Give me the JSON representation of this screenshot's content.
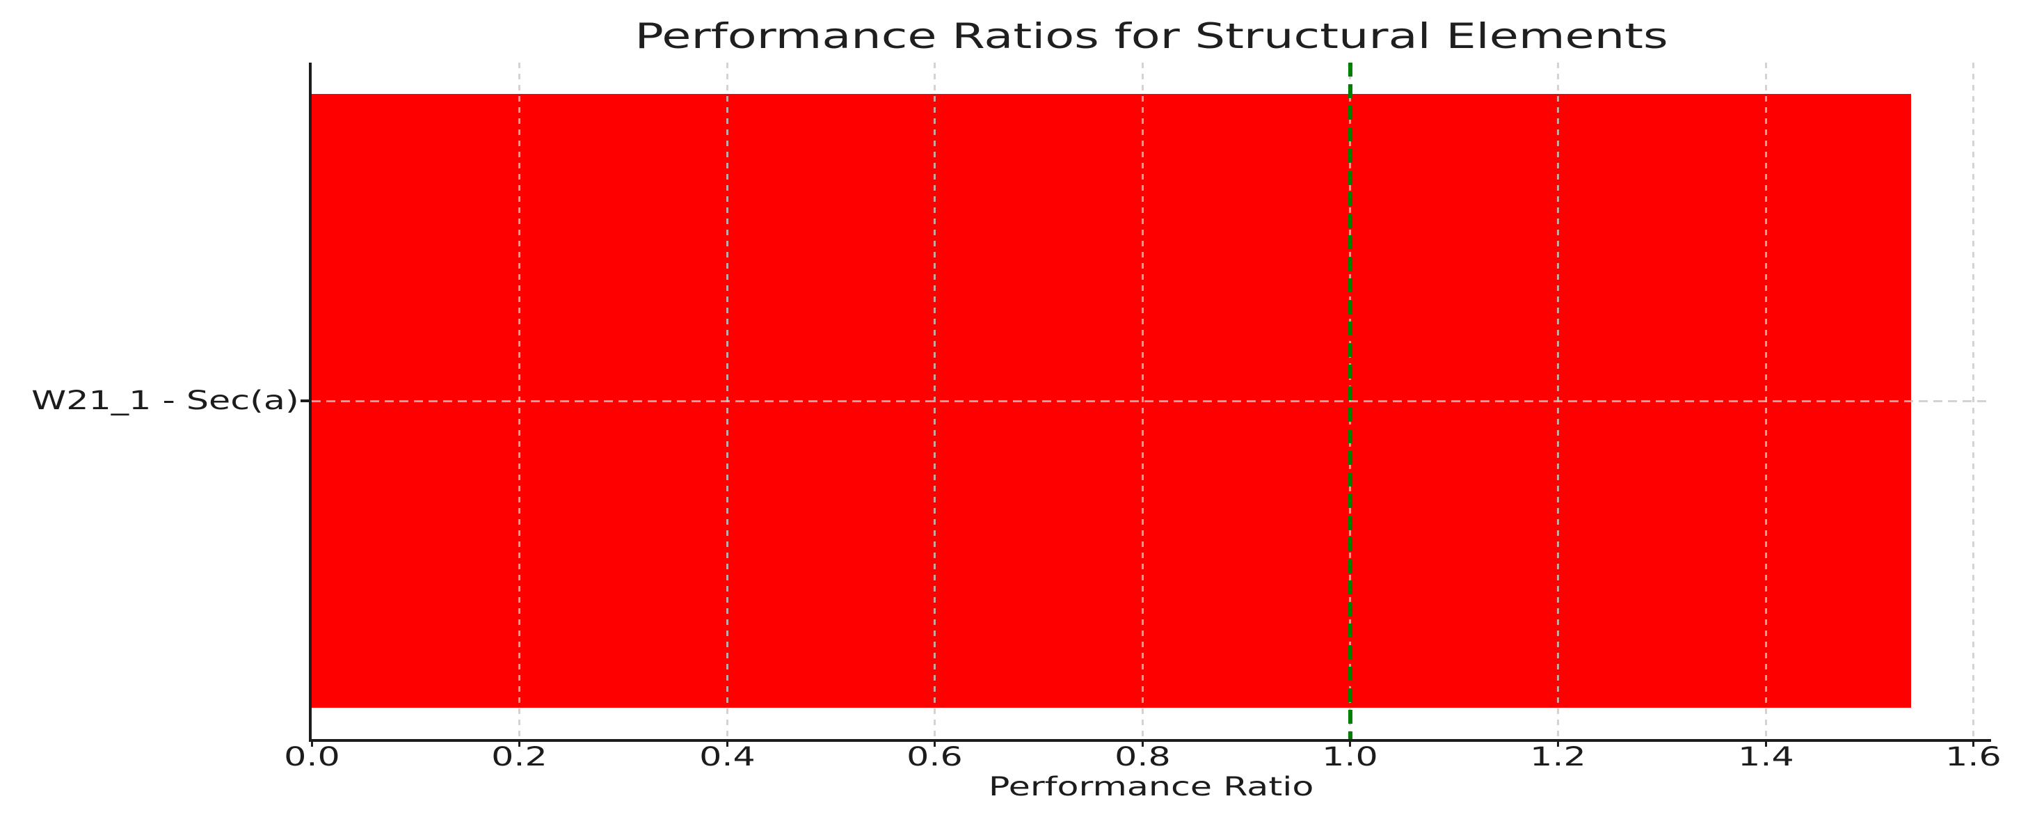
{
  "chart_data": {
    "type": "bar",
    "orientation": "horizontal",
    "title": "Performance Ratios for Structural Elements",
    "xlabel": "Performance Ratio",
    "ylabel": "",
    "categories": [
      "W21_1 - Sec(a)"
    ],
    "values": [
      1.54
    ],
    "series": [
      {
        "name": "Performance Ratio",
        "values": [
          1.54
        ]
      }
    ],
    "xlim": [
      0,
      1.617
    ],
    "xticks": [
      0,
      0.2,
      0.4,
      0.6,
      0.8,
      1.0,
      1.2,
      1.4,
      1.6
    ],
    "xtick_labels": [
      "0.0",
      "0.2",
      "0.4",
      "0.6",
      "0.8",
      "1.0",
      "1.2",
      "1.4",
      "1.6"
    ],
    "grid": true,
    "grid_style": "dashed",
    "legend": false,
    "annotations": [
      {
        "kind": "vline",
        "x": 1.0,
        "style": "dashed",
        "color": "#008000"
      }
    ],
    "colors": {
      "bar": "#ff0000",
      "threshold_line": "#008000",
      "gridline": "#c8c8c8",
      "text": "#1c1c1c",
      "spine": "#1c1c1c",
      "background": "#ffffff"
    }
  }
}
